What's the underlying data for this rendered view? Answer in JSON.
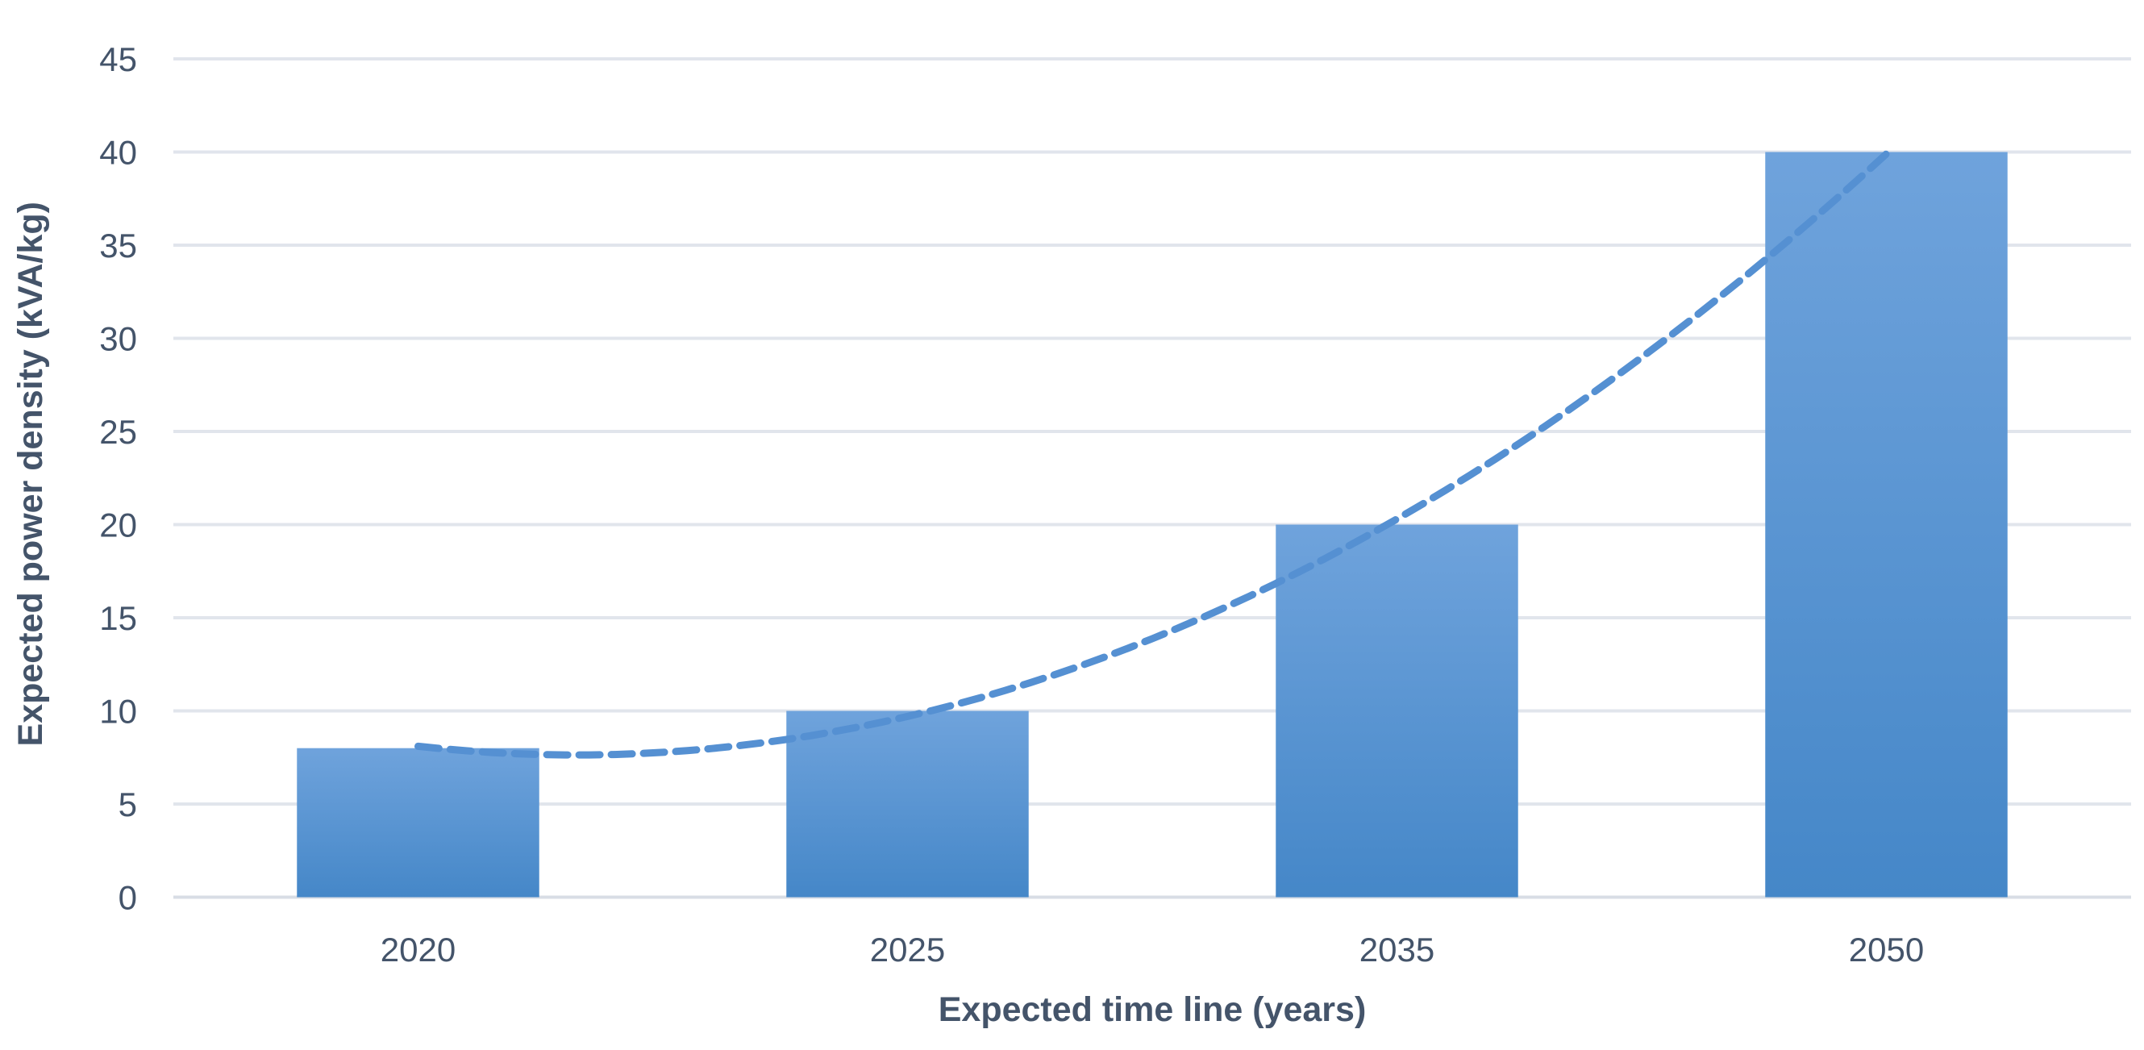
{
  "chart_data": {
    "type": "bar",
    "title": "",
    "categories": [
      "2020",
      "2025",
      "2035",
      "2050"
    ],
    "values": [
      8,
      10,
      20,
      40
    ],
    "xlabel": "Expected time line (years)",
    "ylabel": "Expected power density (kVA/kg)",
    "ylim": [
      0,
      45
    ],
    "yticks": [
      0,
      5,
      10,
      15,
      20,
      25,
      30,
      35,
      40,
      45
    ],
    "grid": true,
    "legend": "none",
    "bar_gap_ratio": 0.505,
    "trendline": {
      "type": "polynomial",
      "order": 2,
      "coefficients": {
        "a": 4.5,
        "b": -11.9,
        "c": 15.5
      },
      "t_domain": [
        1,
        4
      ],
      "description": "dashed trend curve through bar tops: starts ~8.1 at 2020, dips to ~7.6, ~9.7 at 2025, ~20.3 at 2035, ends at 40 at 2050",
      "sample_points": [
        {
          "t": 1.0,
          "y": 8.1
        },
        {
          "t": 1.32,
          "y": 7.6
        },
        {
          "t": 2.0,
          "y": 9.7
        },
        {
          "t": 2.5,
          "y": 13.9
        },
        {
          "t": 3.0,
          "y": 20.3
        },
        {
          "t": 3.5,
          "y": 29.0
        },
        {
          "t": 4.0,
          "y": 39.9
        }
      ]
    },
    "colors": {
      "background": "#FFFFFF",
      "bar_gradient_top": "#6FA3DC",
      "bar_gradient_bottom": "#4587C8",
      "trendline": "#5590D2",
      "gridline": "#E1E5EC",
      "axis_line": "#D8DDE5",
      "text": "#44546A"
    }
  }
}
